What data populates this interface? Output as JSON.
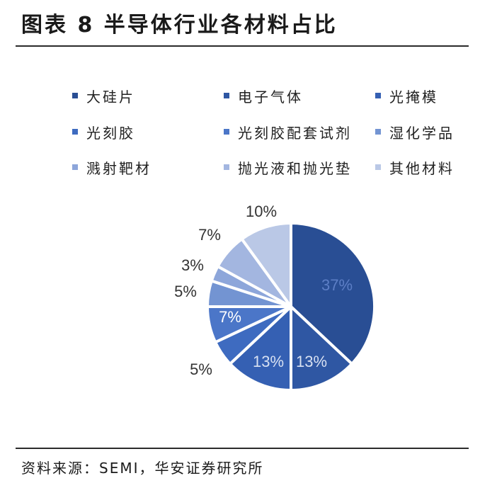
{
  "title": "图表 8 半导体行业各材料占比",
  "source": "资料来源：SEMI，华安证券研究所",
  "chart_data": {
    "type": "pie",
    "title": "图表 8 半导体行业各材料占比",
    "legend_position": "top",
    "categories": [
      "大硅片",
      "电子气体",
      "光掩模",
      "光刻胶",
      "光刻胶配套试剂",
      "湿化学品",
      "溅射靶材",
      "抛光液和抛光垫",
      "其他材料"
    ],
    "values": [
      37,
      13,
      13,
      5,
      7,
      5,
      3,
      7,
      10
    ],
    "data_labels": [
      "37%",
      "13%",
      "13%",
      "5%",
      "7%",
      "5%",
      "3%",
      "7%",
      "10%"
    ],
    "colors": [
      "#294E94",
      "#2F57A3",
      "#3560B3",
      "#3E6BC0",
      "#4B76C8",
      "#7394D2",
      "#8DA6DA",
      "#A3B6E0",
      "#BAC8E6"
    ]
  }
}
